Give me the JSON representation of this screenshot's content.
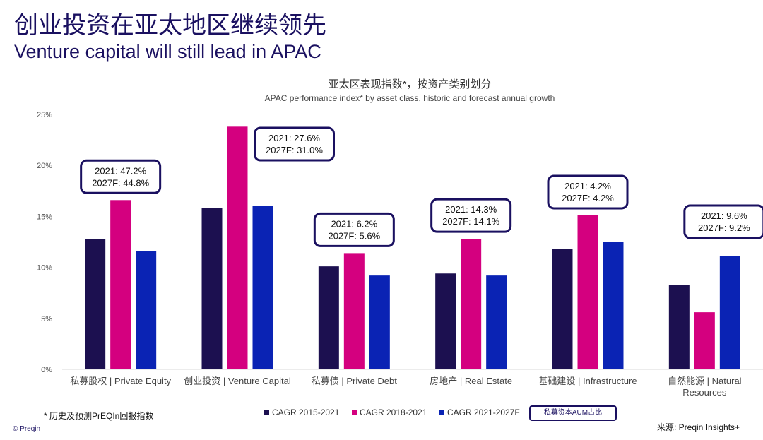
{
  "header": {
    "title_zh": "创业投资在亚太地区继续领先",
    "title_en": "Venture capital will still lead in APAC"
  },
  "chart_data": {
    "type": "bar",
    "title": "亚太区表现指数*，按资产类别划分",
    "subtitle": "APAC performance index* by asset class, historic and forecast annual growth",
    "categories": [
      "私募股权 | Private Equity",
      "创业投资 | Venture Capital",
      "私募债 | Private Debt",
      "房地产 | Real Estate",
      "基础建设 | Infrastructure",
      "自然能源 | Natural Resources"
    ],
    "category_lines": [
      [
        "私募股权 | Private Equity"
      ],
      [
        "创业投资 | Venture Capital"
      ],
      [
        "私募债 | Private Debt"
      ],
      [
        "房地产 | Real Estate"
      ],
      [
        "基础建设 | Infrastructure"
      ],
      [
        "自然能源 | Natural",
        "Resources"
      ]
    ],
    "series": [
      {
        "name": "CAGR 2015-2021",
        "color": "#1c1050",
        "values": [
          12.8,
          15.8,
          10.1,
          9.4,
          11.8,
          8.3
        ]
      },
      {
        "name": "CAGR 2018-2021",
        "color": "#d4007f",
        "values": [
          16.6,
          23.8,
          11.4,
          12.8,
          15.1,
          5.6
        ]
      },
      {
        "name": "CAGR 2021-2027F",
        "color": "#0a23b4",
        "values": [
          11.6,
          16.0,
          9.2,
          9.2,
          12.5,
          11.1
        ]
      }
    ],
    "ylim": [
      0,
      25
    ],
    "yticks": [
      "0%",
      "5%",
      "10%",
      "15%",
      "20%",
      "25%"
    ],
    "ytick_values": [
      0,
      5,
      10,
      15,
      20,
      25
    ],
    "grid": false,
    "legend_position": "bottom",
    "annotations": [
      {
        "category": 0,
        "line1": "2021: 47.2%",
        "line2": "2027F: 44.8%"
      },
      {
        "category": 1,
        "line1": "2021: 27.6%",
        "line2": "2027F: 31.0%"
      },
      {
        "category": 2,
        "line1": "2021: 6.2%",
        "line2": "2027F: 5.6%"
      },
      {
        "category": 3,
        "line1": "2021: 14.3%",
        "line2": "2027F: 14.1%"
      },
      {
        "category": 4,
        "line1": "2021: 4.2%",
        "line2": "2027F: 4.2%"
      },
      {
        "category": 5,
        "line1": "2021: 9.6%",
        "line2": "2027F: 9.2%"
      }
    ],
    "annotation_legend": "私募资本AUM占比",
    "annotation_border_color": "#1a1060"
  },
  "footer": {
    "footnote": "* 历史及预测PrEQIn回报指数",
    "copyright": "© Preqin",
    "source": "来源: Preqin Insights+"
  }
}
